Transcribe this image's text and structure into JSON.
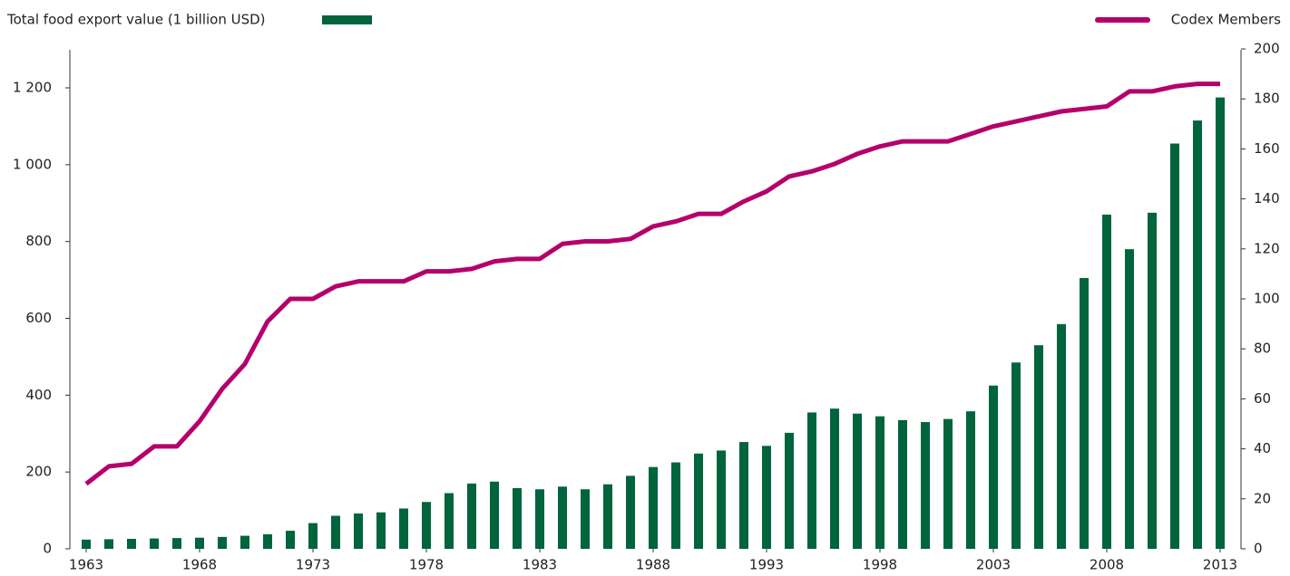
{
  "chart_data": {
    "type": "bar",
    "x": [
      1963,
      1964,
      1965,
      1966,
      1967,
      1968,
      1969,
      1970,
      1971,
      1972,
      1973,
      1974,
      1975,
      1976,
      1977,
      1978,
      1979,
      1980,
      1981,
      1982,
      1983,
      1984,
      1985,
      1986,
      1987,
      1988,
      1989,
      1990,
      1991,
      1992,
      1993,
      1994,
      1995,
      1996,
      1997,
      1998,
      1999,
      2000,
      2001,
      2002,
      2003,
      2004,
      2005,
      2006,
      2007,
      2008,
      2009,
      2010,
      2011,
      2012,
      2013
    ],
    "xlim": [
      1963,
      2013
    ],
    "xticks": [
      1963,
      1968,
      1973,
      1978,
      1983,
      1988,
      1993,
      1998,
      2003,
      2008,
      2013
    ],
    "series": [
      {
        "name": "Total food export value (1 billion USD)",
        "type": "bar",
        "color": "#00643c",
        "axis": "y",
        "values": [
          24,
          25,
          26,
          27,
          28,
          29,
          31,
          34,
          38,
          47,
          67,
          86,
          92,
          95,
          105,
          122,
          145,
          170,
          175,
          158,
          155,
          162,
          155,
          168,
          190,
          213,
          225,
          248,
          256,
          278,
          268,
          302,
          355,
          365,
          352,
          345,
          335,
          330,
          338,
          358,
          425,
          485,
          530,
          585,
          705,
          870,
          780,
          875,
          1055,
          1115,
          1175
        ]
      },
      {
        "name": "Codex Members",
        "type": "line",
        "color": "#b5006b",
        "axis": "y2",
        "values": [
          26,
          33,
          34,
          41,
          41,
          51,
          64,
          74,
          91,
          100,
          100,
          105,
          107,
          107,
          107,
          111,
          111,
          112,
          115,
          116,
          116,
          122,
          123,
          123,
          124,
          129,
          131,
          134,
          134,
          139,
          143,
          149,
          151,
          154,
          158,
          161,
          163,
          163,
          163,
          166,
          169,
          171,
          173,
          175,
          176,
          177,
          183,
          183,
          185,
          186,
          186
        ]
      }
    ],
    "ylim": [
      0,
      1300
    ],
    "yticks": [
      0,
      200,
      400,
      600,
      800,
      {
        "value": 1000,
        "label": "1 000"
      },
      {
        "value": 1200,
        "label": "1 200"
      }
    ],
    "y2lim": [
      0,
      200
    ],
    "y2ticks": [
      0,
      20,
      40,
      60,
      80,
      100,
      120,
      140,
      160,
      180,
      200
    ]
  }
}
